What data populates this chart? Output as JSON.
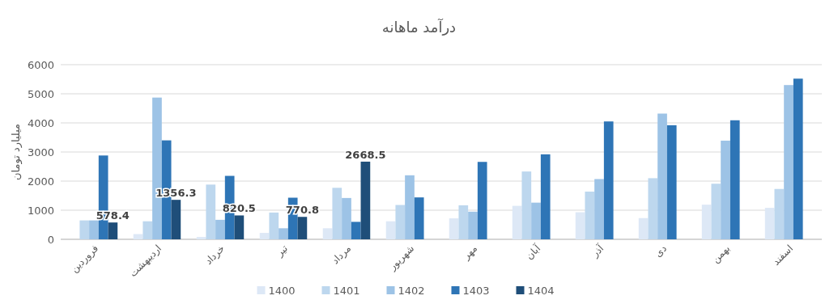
{
  "chart_data": {
    "type": "bar",
    "title": "درآمد ماهانه",
    "ylabel": "میلیارد تومان",
    "categories": [
      "فروردین",
      "اردیبهشت",
      "خرداد",
      "تیر",
      "مرداد",
      "شهریور",
      "مهر",
      "آبان",
      "آذر",
      "دی",
      "بهمن",
      "اسفند"
    ],
    "series": [
      {
        "name": "1400",
        "color": "#dde8f6",
        "values": [
          null,
          180,
          80,
          220,
          380,
          620,
          720,
          1150,
          930,
          730,
          1190,
          1080
        ]
      },
      {
        "name": "1401",
        "color": "#bdd7ee",
        "values": [
          650,
          620,
          1880,
          920,
          1770,
          1180,
          1170,
          2330,
          1640,
          2100,
          1910,
          1730
        ]
      },
      {
        "name": "1402",
        "color": "#9dc3e6",
        "values": [
          650,
          4870,
          670,
          380,
          1420,
          2200,
          950,
          1260,
          2070,
          4320,
          3390,
          5300
        ]
      },
      {
        "name": "1403",
        "color": "#2e75b6",
        "values": [
          2880,
          3400,
          2180,
          1430,
          600,
          1440,
          2660,
          2920,
          4050,
          3920,
          4090,
          5520
        ]
      },
      {
        "name": "1404",
        "color": "#1f4e79",
        "values": [
          578.4,
          1356.3,
          820.5,
          770.8,
          2668.5,
          null,
          null,
          null,
          null,
          null,
          null,
          null
        ],
        "value_labels": [
          "578.4",
          "1356.3",
          "820.5",
          "770.8",
          "2668.5",
          null,
          null,
          null,
          null,
          null,
          null,
          null
        ]
      }
    ],
    "ylim": [
      0,
      6000
    ],
    "yticks": [
      0,
      1000,
      2000,
      3000,
      4000,
      5000,
      6000
    ],
    "grid": "y",
    "legend": "bottom"
  }
}
